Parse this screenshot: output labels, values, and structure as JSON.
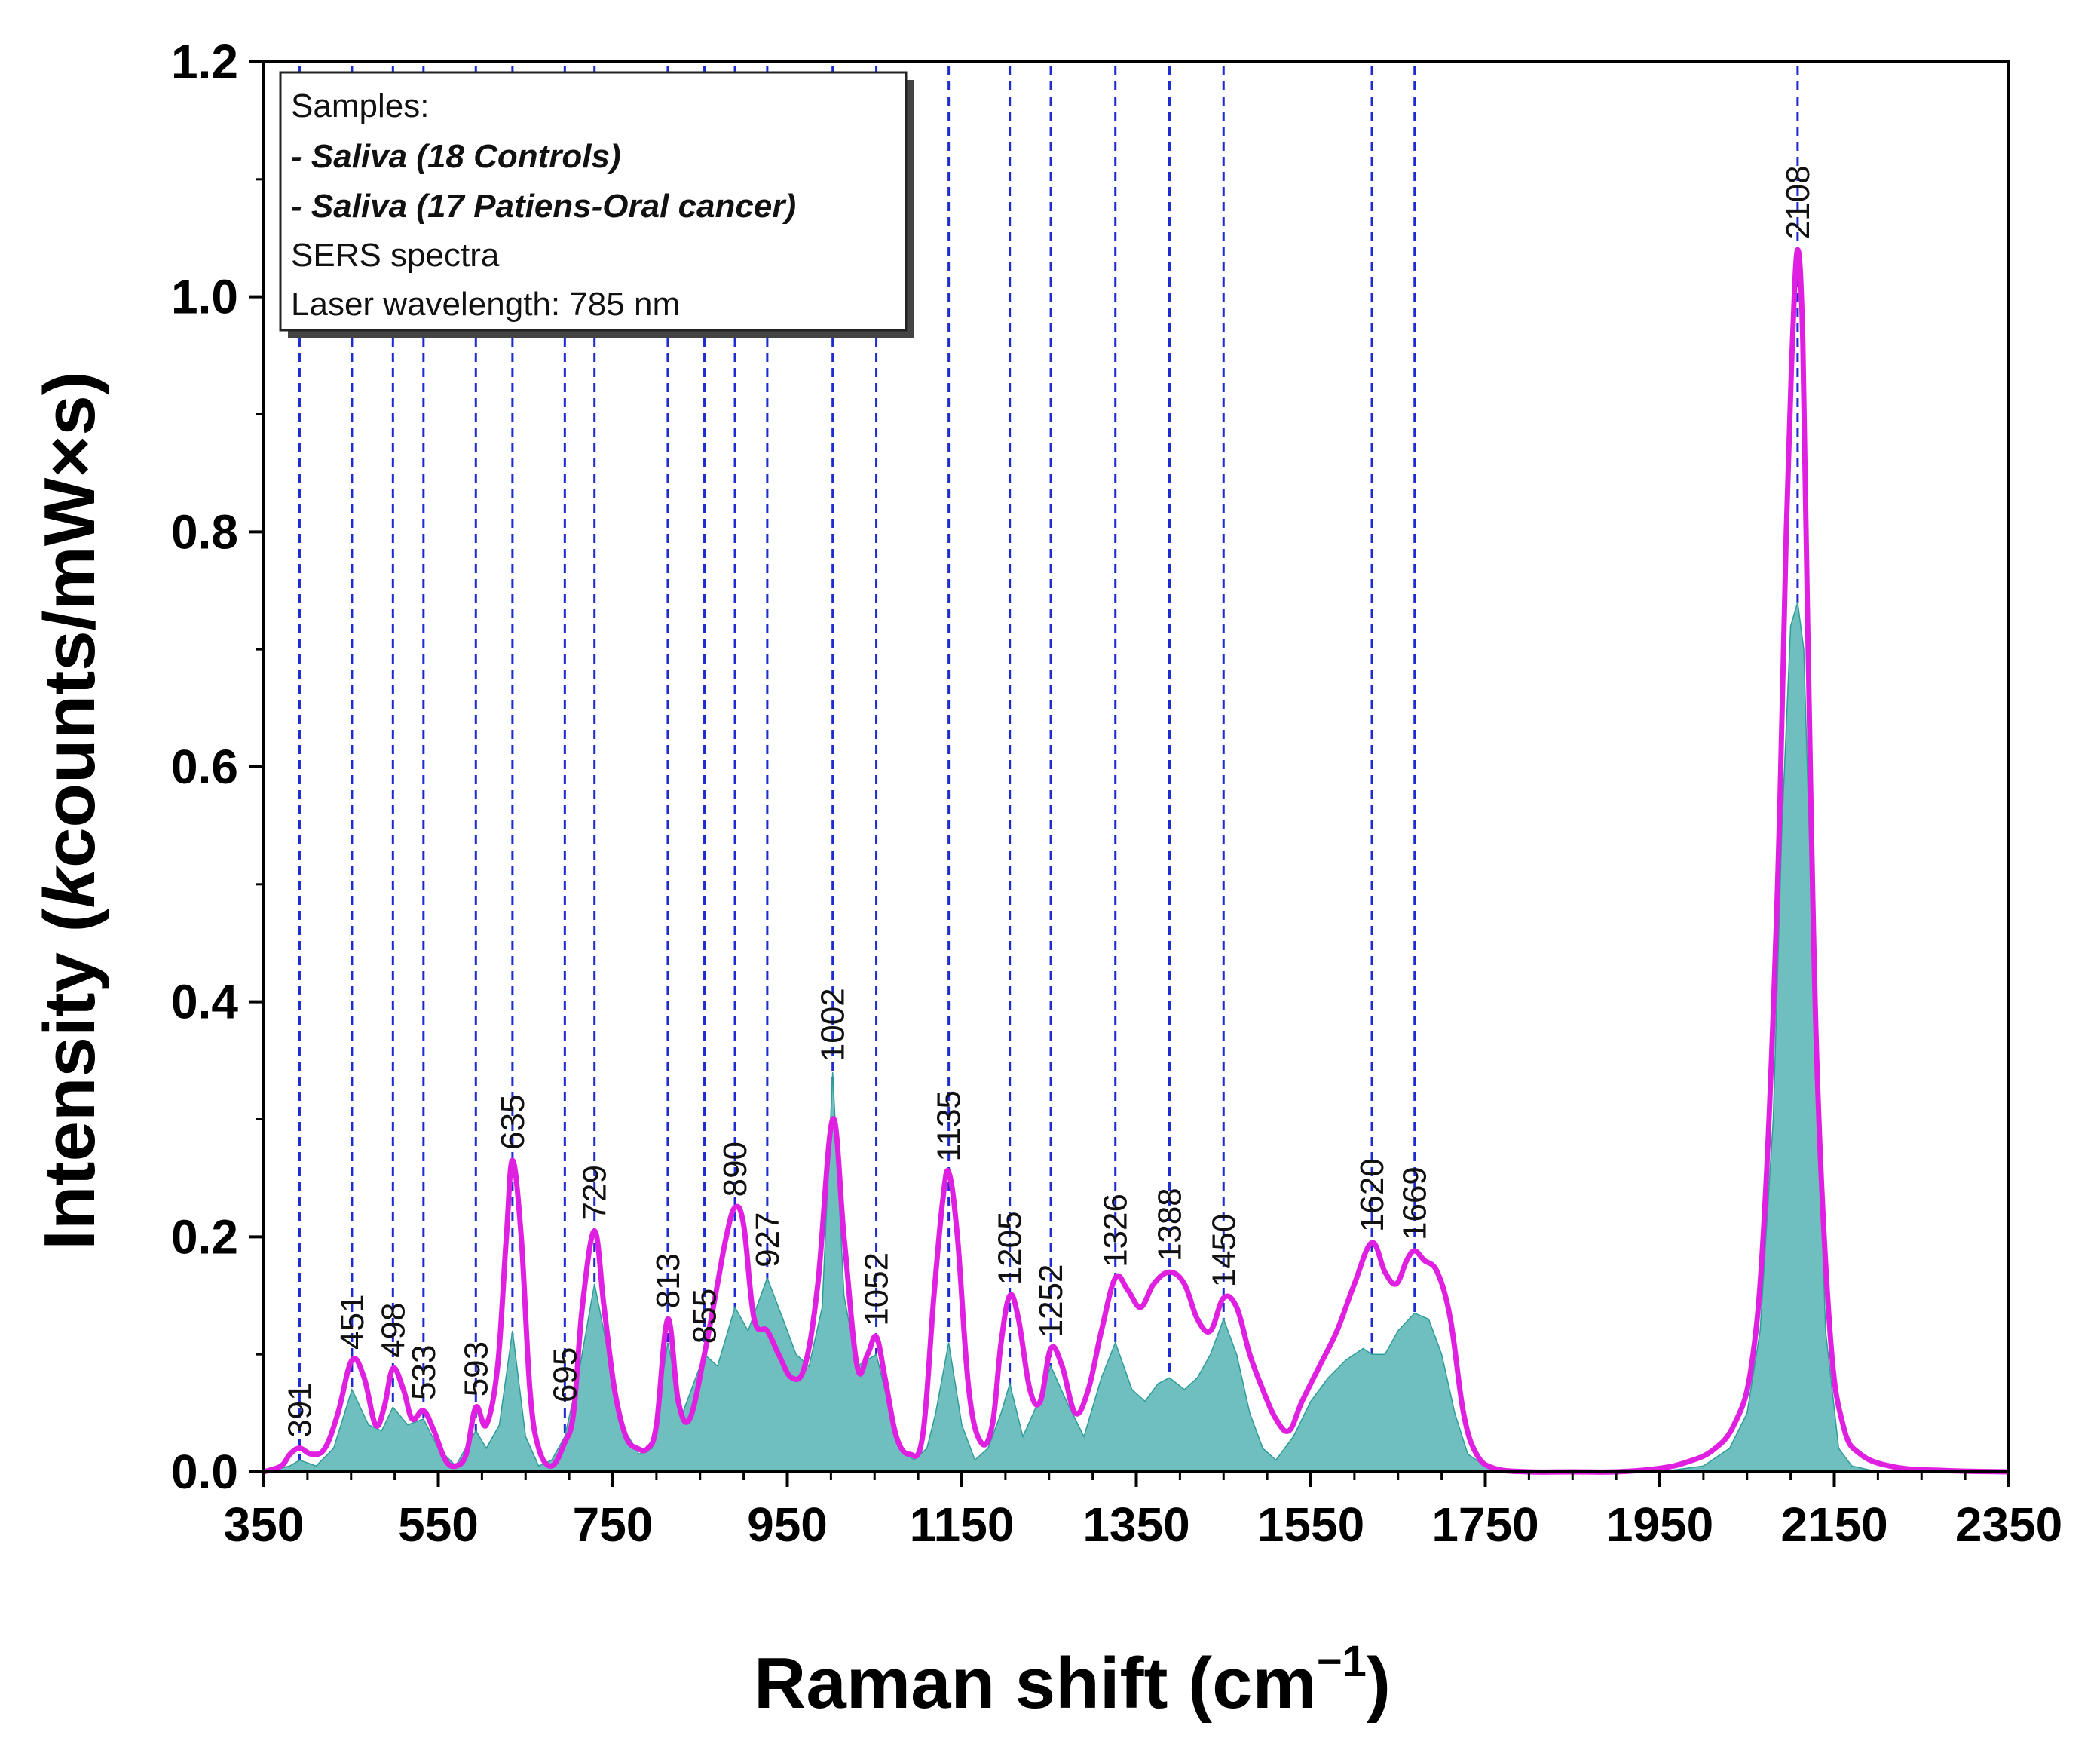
{
  "chart_data": {
    "type": "area",
    "title": "",
    "xlabel": "Raman shift (cm",
    "xlabel_sup": "−1",
    "xlabel_suffix": ")",
    "ylabel_prefix": "Intensity (",
    "ylabel_italic": "k",
    "ylabel_suffix": "counts/mW×s)",
    "xlim": [
      350,
      2350
    ],
    "ylim": [
      0,
      1.2
    ],
    "x_ticks": [
      350,
      550,
      750,
      950,
      1150,
      1350,
      1550,
      1750,
      1950,
      2150,
      2350
    ],
    "x_tick_labels": [
      "350",
      "550",
      "750",
      "950",
      "1150",
      "1350",
      "1550",
      "1750",
      "1950",
      "2150",
      "2350"
    ],
    "y_ticks": [
      0.0,
      0.2,
      0.4,
      0.6,
      0.8,
      1.0,
      1.2
    ],
    "y_tick_labels": [
      "0.0",
      "0.2",
      "0.4",
      "0.6",
      "0.8",
      "1.0",
      "1.2"
    ],
    "peak_markers": [
      391,
      451,
      498,
      533,
      593,
      635,
      695,
      729,
      813,
      855,
      890,
      927,
      1002,
      1052,
      1135,
      1205,
      1252,
      1326,
      1388,
      1450,
      1620,
      1669,
      2108
    ],
    "peak_labels": [
      "391",
      "451",
      "498",
      "533",
      "593",
      "635",
      "695",
      "729",
      "813",
      "855",
      "890",
      "927",
      "1002",
      "1052",
      "1135",
      "1205",
      "1252",
      "1326",
      "1388",
      "1450",
      "1620",
      "1669",
      "2108"
    ],
    "legend": {
      "position": "top-left",
      "header": "Samples:",
      "entries": [
        {
          "label": "- Saliva (18 Controls)",
          "color": "#2e9c9a"
        },
        {
          "label": "- Saliva (17 Patiens-Oral cancer)",
          "color": "#e020e0"
        }
      ],
      "notes": [
        "SERS spectra",
        "Laser wavelength: 785 nm"
      ]
    },
    "series": [
      {
        "name": "Saliva (18 Controls)",
        "style": "filled-area",
        "color": "#2e9c9a",
        "fill": "#6ebfbd",
        "x": [
          350,
          380,
          391,
          410,
          430,
          451,
          470,
          485,
          498,
          515,
          533,
          550,
          570,
          585,
          593,
          605,
          620,
          635,
          650,
          665,
          680,
          695,
          710,
          729,
          745,
          760,
          780,
          795,
          813,
          830,
          845,
          855,
          870,
          890,
          905,
          927,
          945,
          960,
          975,
          990,
          1002,
          1015,
          1030,
          1052,
          1065,
          1080,
          1095,
          1110,
          1120,
          1135,
          1150,
          1165,
          1180,
          1195,
          1205,
          1220,
          1235,
          1252,
          1270,
          1290,
          1310,
          1326,
          1345,
          1360,
          1375,
          1388,
          1405,
          1420,
          1435,
          1450,
          1465,
          1480,
          1495,
          1510,
          1530,
          1550,
          1570,
          1590,
          1610,
          1620,
          1635,
          1650,
          1669,
          1685,
          1700,
          1715,
          1730,
          1750,
          1800,
          1900,
          1950,
          2000,
          2030,
          2050,
          2065,
          2080,
          2090,
          2100,
          2108,
          2115,
          2125,
          2140,
          2155,
          2170,
          2200,
          2250,
          2350
        ],
        "y": [
          0.0,
          0.005,
          0.01,
          0.005,
          0.02,
          0.07,
          0.04,
          0.035,
          0.055,
          0.04,
          0.045,
          0.02,
          0.005,
          0.025,
          0.035,
          0.02,
          0.04,
          0.12,
          0.03,
          0.005,
          0.01,
          0.03,
          0.08,
          0.16,
          0.1,
          0.04,
          0.015,
          0.02,
          0.11,
          0.05,
          0.08,
          0.1,
          0.09,
          0.14,
          0.12,
          0.165,
          0.13,
          0.1,
          0.09,
          0.14,
          0.34,
          0.15,
          0.09,
          0.1,
          0.06,
          0.02,
          0.01,
          0.02,
          0.05,
          0.11,
          0.04,
          0.01,
          0.02,
          0.05,
          0.075,
          0.03,
          0.055,
          0.09,
          0.06,
          0.03,
          0.08,
          0.11,
          0.07,
          0.06,
          0.075,
          0.08,
          0.07,
          0.08,
          0.1,
          0.13,
          0.1,
          0.05,
          0.02,
          0.01,
          0.03,
          0.06,
          0.08,
          0.095,
          0.105,
          0.1,
          0.1,
          0.12,
          0.135,
          0.13,
          0.1,
          0.05,
          0.015,
          0.005,
          0.0,
          0.0,
          0.0,
          0.005,
          0.02,
          0.05,
          0.12,
          0.3,
          0.55,
          0.72,
          0.74,
          0.7,
          0.45,
          0.12,
          0.02,
          0.005,
          0.0,
          0.0,
          0.0
        ]
      },
      {
        "name": "Saliva (17 Patiens-Oral cancer)",
        "style": "line",
        "color": "#e020e0",
        "x": [
          350,
          370,
          380,
          391,
          405,
          420,
          435,
          451,
          465,
          478,
          488,
          498,
          510,
          520,
          533,
          545,
          558,
          570,
          582,
          593,
          605,
          618,
          628,
          635,
          645,
          655,
          665,
          680,
          695,
          705,
          715,
          729,
          740,
          752,
          765,
          778,
          790,
          800,
          813,
          825,
          838,
          855,
          870,
          880,
          890,
          900,
          912,
          927,
          940,
          955,
          970,
          985,
          1002,
          1015,
          1030,
          1042,
          1052,
          1062,
          1075,
          1090,
          1105,
          1118,
          1128,
          1135,
          1145,
          1158,
          1172,
          1185,
          1195,
          1205,
          1215,
          1228,
          1240,
          1252,
          1265,
          1280,
          1295,
          1310,
          1326,
          1340,
          1355,
          1370,
          1388,
          1405,
          1420,
          1435,
          1450,
          1465,
          1480,
          1495,
          1510,
          1525,
          1540,
          1560,
          1580,
          1600,
          1620,
          1635,
          1648,
          1660,
          1669,
          1680,
          1695,
          1710,
          1725,
          1740,
          1760,
          1800,
          1850,
          1900,
          1950,
          1980,
          2010,
          2035,
          2055,
          2070,
          2085,
          2095,
          2102,
          2108,
          2114,
          2120,
          2130,
          2145,
          2160,
          2180,
          2220,
          2280,
          2350
        ],
        "y": [
          0.0,
          0.005,
          0.015,
          0.02,
          0.015,
          0.02,
          0.05,
          0.095,
          0.08,
          0.04,
          0.055,
          0.088,
          0.07,
          0.045,
          0.052,
          0.035,
          0.01,
          0.005,
          0.015,
          0.055,
          0.04,
          0.09,
          0.2,
          0.265,
          0.2,
          0.07,
          0.02,
          0.005,
          0.025,
          0.05,
          0.14,
          0.205,
          0.14,
          0.07,
          0.03,
          0.02,
          0.02,
          0.04,
          0.13,
          0.06,
          0.045,
          0.1,
          0.16,
          0.2,
          0.225,
          0.21,
          0.13,
          0.12,
          0.1,
          0.08,
          0.09,
          0.16,
          0.3,
          0.2,
          0.09,
          0.1,
          0.115,
          0.08,
          0.03,
          0.015,
          0.03,
          0.15,
          0.23,
          0.255,
          0.2,
          0.07,
          0.025,
          0.04,
          0.11,
          0.15,
          0.13,
          0.07,
          0.06,
          0.105,
          0.09,
          0.05,
          0.07,
          0.12,
          0.165,
          0.155,
          0.14,
          0.16,
          0.17,
          0.16,
          0.13,
          0.12,
          0.148,
          0.14,
          0.1,
          0.07,
          0.045,
          0.035,
          0.06,
          0.09,
          0.12,
          0.16,
          0.195,
          0.17,
          0.16,
          0.18,
          0.188,
          0.18,
          0.17,
          0.13,
          0.05,
          0.015,
          0.003,
          0.0,
          0.0,
          0.0,
          0.003,
          0.008,
          0.018,
          0.04,
          0.09,
          0.22,
          0.5,
          0.8,
          0.96,
          1.04,
          0.96,
          0.7,
          0.35,
          0.12,
          0.04,
          0.015,
          0.004,
          0.001,
          0.0
        ]
      }
    ]
  }
}
